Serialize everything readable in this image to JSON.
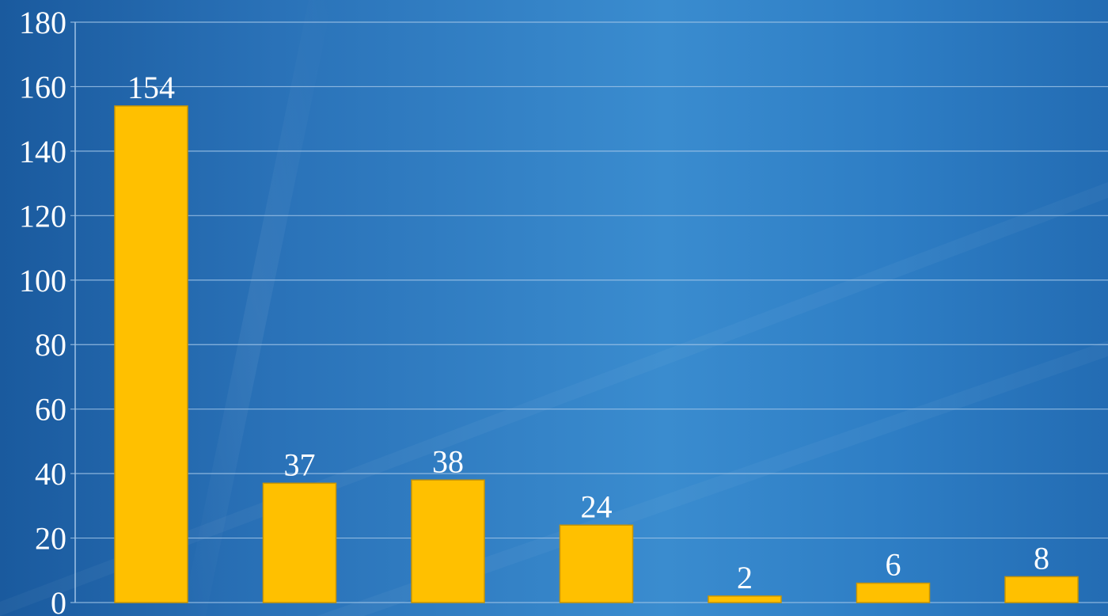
{
  "chart_data": {
    "type": "bar",
    "categories": [
      "",
      "",
      "",
      "",
      "",
      "",
      ""
    ],
    "values": [
      154,
      37,
      38,
      24,
      2,
      6,
      8
    ],
    "data_labels": [
      "154",
      "37",
      "38",
      "24",
      "2",
      "6",
      "8"
    ],
    "yticks": [
      "0",
      "20",
      "40",
      "60",
      "80",
      "100",
      "120",
      "140",
      "160",
      "180"
    ],
    "ylim": [
      0,
      180
    ],
    "grid": true,
    "title": "",
    "xlabel": "",
    "ylabel": "",
    "colors": {
      "bar": "#ffc000",
      "bar_edge": "#c99500",
      "grid": "#9fc3e6",
      "axis": "#9fc3e6",
      "text": "#ffffff"
    }
  }
}
